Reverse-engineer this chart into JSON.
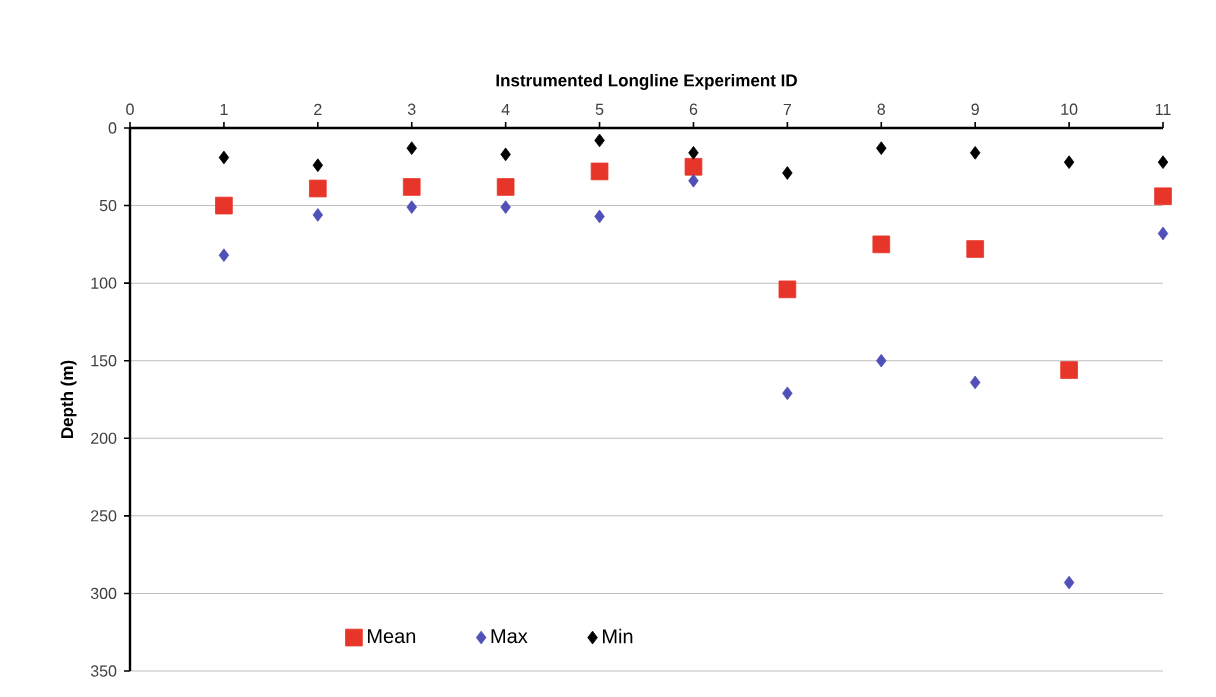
{
  "chart_data": {
    "type": "scatter",
    "xlabel": "Instrumented Longline Experiment ID",
    "ylabel": "Depth (m)",
    "x": [
      1,
      2,
      3,
      4,
      5,
      6,
      7,
      8,
      9,
      10,
      11
    ],
    "series": [
      {
        "name": "Mean",
        "color": "#e8352a",
        "marker": "square",
        "values": [
          50,
          39,
          38,
          38,
          28,
          25,
          104,
          75,
          78,
          156,
          44
        ]
      },
      {
        "name": "Max",
        "color": "#5050b8",
        "marker": "diamond",
        "values": [
          82,
          56,
          51,
          51,
          57,
          34,
          171,
          150,
          164,
          293,
          68
        ]
      },
      {
        "name": "Min",
        "color": "#000000",
        "marker": "diamond",
        "values": [
          19,
          24,
          13,
          17,
          8,
          16,
          29,
          13,
          16,
          22,
          22
        ]
      }
    ],
    "xlim": [
      0,
      11
    ],
    "xticks": [
      0,
      1,
      2,
      3,
      4,
      5,
      6,
      7,
      8,
      9,
      10,
      11
    ],
    "ylim": [
      350,
      0
    ],
    "yticks": [
      0,
      50,
      100,
      150,
      200,
      250,
      300,
      350
    ],
    "grid": "y",
    "legend": "bottom"
  }
}
